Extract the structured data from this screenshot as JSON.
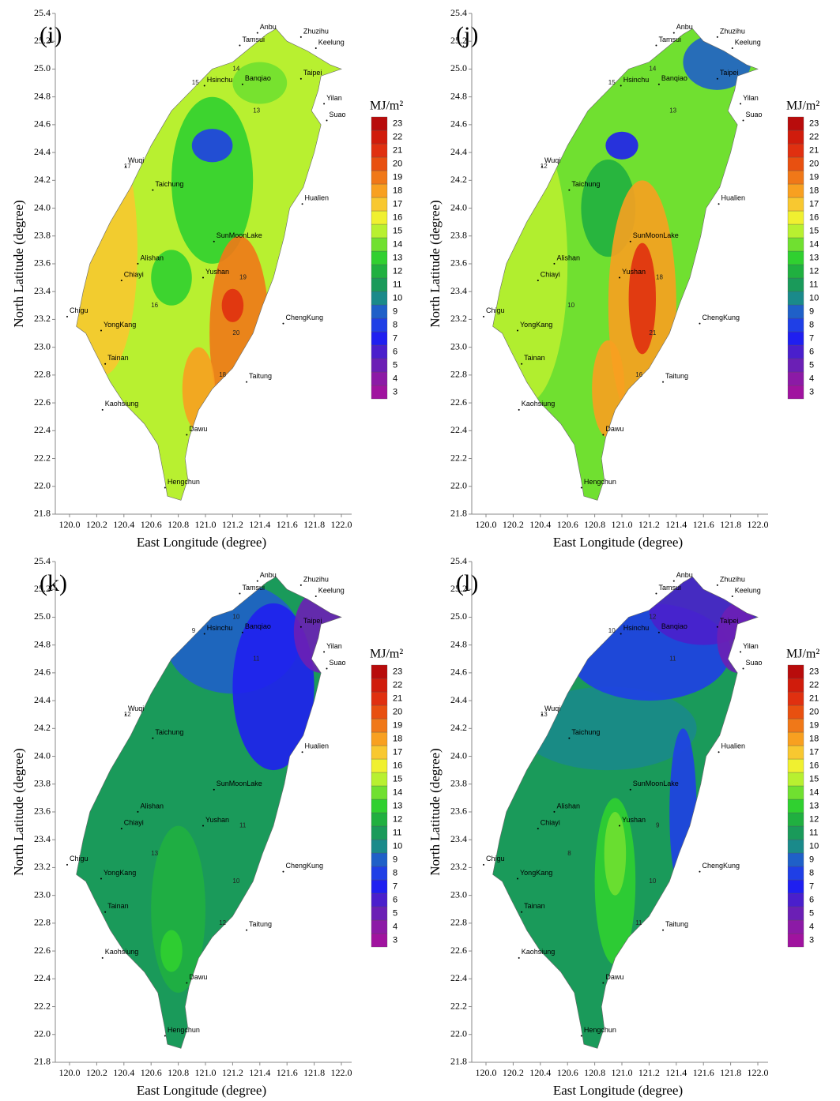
{
  "panels": [
    {
      "label": "(i)",
      "contour_labels": [
        15,
        14,
        13,
        17,
        16,
        19,
        20,
        18
      ]
    },
    {
      "label": "(j)",
      "contour_labels": [
        15,
        14,
        13,
        12,
        10,
        18,
        21,
        16
      ]
    },
    {
      "label": "(k)",
      "contour_labels": [
        9,
        10,
        11,
        12,
        13,
        11,
        10,
        12
      ]
    },
    {
      "label": "(l)",
      "contour_labels": [
        10,
        12,
        11,
        13,
        8,
        9,
        10,
        11
      ]
    }
  ],
  "stations": [
    "Anbu",
    "Zhuzihu",
    "Tamsui",
    "Keelung",
    "Taipei",
    "Banqiao",
    "Hsinchu",
    "Yilan",
    "Suao",
    "Wuqi",
    "Taichung",
    "Hualien",
    "SunMoonLake",
    "Alishan",
    "Chiayi",
    "Yushan",
    "Chigu",
    "YongKang",
    "ChengKung",
    "Tainan",
    "Taitung",
    "Kaohsiung",
    "Dawu",
    "Hengchun"
  ],
  "x_axis": {
    "label": "East Longitude (degree)",
    "ticks": [
      {
        "value": 120,
        "label": "120.0"
      },
      120.2,
      120.4,
      120.6,
      120.8,
      {
        "value": 121,
        "label": "121.0"
      },
      121.2,
      121.4,
      121.6,
      121.8,
      {
        "value": 122,
        "label": "122.0"
      }
    ]
  },
  "y_axis": {
    "label": "North Latitude (degree)",
    "ticks": [
      21.8,
      {
        "value": 22,
        "label": "22.0"
      },
      22.2,
      22.4,
      22.6,
      22.8,
      {
        "value": 23,
        "label": "23.0"
      },
      23.2,
      23.4,
      23.6,
      23.8,
      {
        "value": 24,
        "label": "24.0"
      },
      24.2,
      24.4,
      24.6,
      24.8,
      {
        "value": 25,
        "label": "25.0"
      },
      25.2,
      25.4
    ]
  },
  "colorbar": {
    "title": "MJ/m²",
    "levels": [
      3,
      4,
      5,
      6,
      7,
      8,
      9,
      10,
      11,
      12,
      13,
      14,
      15,
      16,
      17,
      18,
      19,
      20,
      21,
      22,
      23
    ],
    "colors": [
      "#a0139f",
      "#8c1aa6",
      "#6b1fb5",
      "#4a1fcc",
      "#1f1ff0",
      "#1f3fe6",
      "#1f60c8",
      "#1a8a8a",
      "#1a9a5a",
      "#20b040",
      "#30d030",
      "#70e030",
      "#b8f030",
      "#f0f030",
      "#f8c830",
      "#f8a020",
      "#f07818",
      "#e85010",
      "#e03010",
      "#d01c0c",
      "#b80c0c"
    ]
  }
}
